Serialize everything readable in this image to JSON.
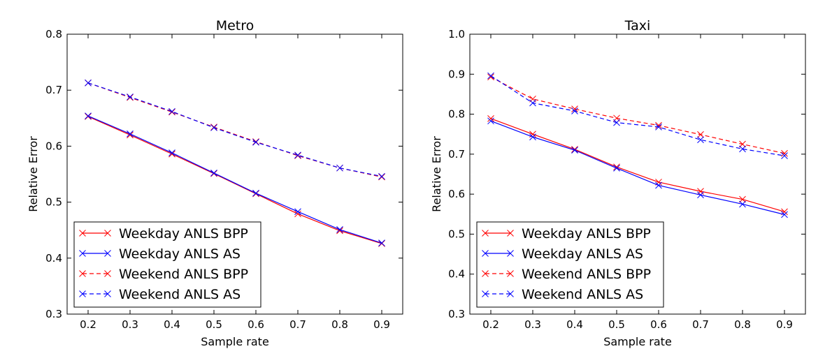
{
  "chart_data": [
    {
      "type": "line",
      "title": "Metro",
      "xlabel": "Sample rate",
      "ylabel": "Relative Error",
      "xlim": [
        0.15,
        0.95
      ],
      "ylim": [
        0.3,
        0.8
      ],
      "x": [
        0.2,
        0.3,
        0.4,
        0.5,
        0.6,
        0.7,
        0.8,
        0.9
      ],
      "xticks": [
        "0.2",
        "0.3",
        "0.4",
        "0.5",
        "0.6",
        "0.7",
        "0.8",
        "0.9"
      ],
      "yticks": [
        "0.3",
        "0.4",
        "0.5",
        "0.6",
        "0.7",
        "0.8"
      ],
      "legend_position": "lower-left",
      "series": [
        {
          "name": "Weekday ANLS BPP",
          "color": "#ff0000",
          "dash": "solid",
          "values": [
            0.653,
            0.62,
            0.586,
            0.551,
            0.515,
            0.479,
            0.449,
            0.426
          ]
        },
        {
          "name": "Weekday ANLS AS",
          "color": "#0000ff",
          "dash": "solid",
          "values": [
            0.654,
            0.622,
            0.588,
            0.552,
            0.516,
            0.483,
            0.451,
            0.427
          ]
        },
        {
          "name": "Weekend ANLS BPP",
          "color": "#ff0000",
          "dash": "dashed",
          "values": [
            0.713,
            0.687,
            0.661,
            0.634,
            0.608,
            0.583,
            0.561,
            0.545
          ]
        },
        {
          "name": "Weekend ANLS AS",
          "color": "#0000ff",
          "dash": "dashed",
          "values": [
            0.713,
            0.688,
            0.662,
            0.633,
            0.607,
            0.584,
            0.561,
            0.546
          ]
        }
      ]
    },
    {
      "type": "line",
      "title": "Taxi",
      "xlabel": "Sample rate",
      "ylabel": "Relative Error",
      "xlim": [
        0.15,
        0.95
      ],
      "ylim": [
        0.3,
        1.0
      ],
      "x": [
        0.2,
        0.3,
        0.4,
        0.5,
        0.6,
        0.7,
        0.8,
        0.9
      ],
      "xticks": [
        "0.2",
        "0.3",
        "0.4",
        "0.5",
        "0.6",
        "0.7",
        "0.8",
        "0.9"
      ],
      "yticks": [
        "0.3",
        "0.4",
        "0.5",
        "0.6",
        "0.7",
        "0.8",
        "0.9",
        "1.0"
      ],
      "legend_position": "lower-left",
      "series": [
        {
          "name": "Weekday ANLS BPP",
          "color": "#ff0000",
          "dash": "solid",
          "values": [
            0.789,
            0.75,
            0.712,
            0.668,
            0.63,
            0.607,
            0.587,
            0.556
          ]
        },
        {
          "name": "Weekday ANLS AS",
          "color": "#0000ff",
          "dash": "solid",
          "values": [
            0.783,
            0.743,
            0.71,
            0.665,
            0.622,
            0.598,
            0.575,
            0.549
          ]
        },
        {
          "name": "Weekend ANLS BPP",
          "color": "#ff0000",
          "dash": "dashed",
          "values": [
            0.893,
            0.838,
            0.813,
            0.79,
            0.772,
            0.749,
            0.725,
            0.702
          ]
        },
        {
          "name": "Weekend ANLS AS",
          "color": "#0000ff",
          "dash": "dashed",
          "values": [
            0.896,
            0.828,
            0.808,
            0.779,
            0.768,
            0.736,
            0.713,
            0.696
          ]
        }
      ]
    }
  ]
}
